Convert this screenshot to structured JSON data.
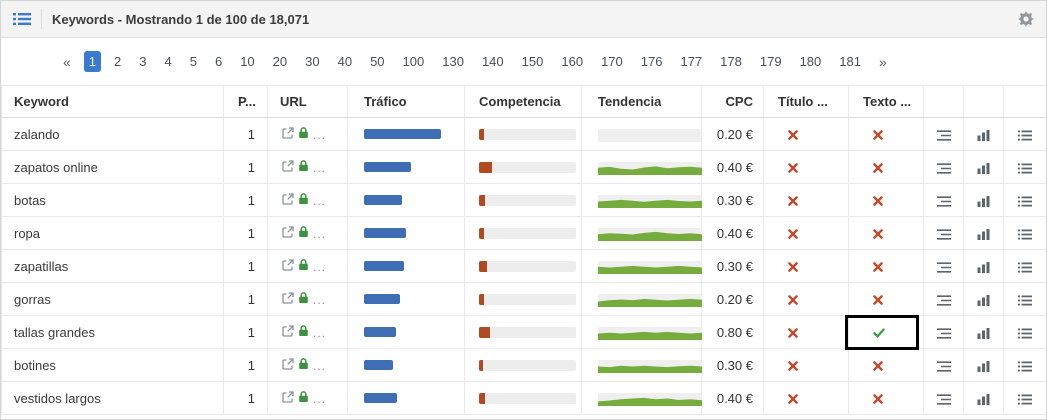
{
  "colors": {
    "accent": "#3a7bd0",
    "traffic": "#3f6eb5",
    "competition": "#b04a22",
    "trend": "#76ab3e",
    "cross": "#c04a2e",
    "check": "#3f9a3f",
    "lock": "#3d9140"
  },
  "topbar": {
    "title": "Keywords - Mostrando 1 de 100 de 18,071"
  },
  "icons": {
    "menu-icon": "list-menu ≡",
    "settings-icon": "gear ⚙",
    "external-link-icon": "↗",
    "lock-icon": "padlock",
    "cross-icon": "✖",
    "check-icon": "✔",
    "related-keywords-icon": "indented-lines",
    "chart-icon": "bar-chart",
    "serp-list-icon": "bulleted-list"
  },
  "pagination": {
    "prev": "«",
    "next": "»",
    "active": "1",
    "pages": [
      "1",
      "2",
      "3",
      "4",
      "5",
      "6",
      "10",
      "20",
      "30",
      "40",
      "50",
      "100",
      "130",
      "140",
      "150",
      "160",
      "170",
      "176",
      "177",
      "178",
      "179",
      "180",
      "181"
    ]
  },
  "table": {
    "url_ellipsis": "...",
    "columns": [
      {
        "label": "Keyword"
      },
      {
        "label": "P..."
      },
      {
        "label": "URL"
      },
      {
        "label": "Tráfico"
      },
      {
        "label": "Competencia"
      },
      {
        "label": "Tendencia"
      },
      {
        "label": "CPC"
      },
      {
        "label": "Título ..."
      },
      {
        "label": "Texto ..."
      },
      {
        "label": ""
      },
      {
        "label": ""
      },
      {
        "label": ""
      }
    ],
    "rows": [
      {
        "keyword": "zalando",
        "position": "1",
        "traffic_pct": 73,
        "competition_pct": 5,
        "trend": [],
        "cpc": "0.20 €",
        "title_match": false,
        "text_match": false,
        "highlight_text": false
      },
      {
        "keyword": "zapatos online",
        "position": "1",
        "traffic_pct": 45,
        "competition_pct": 13,
        "trend": [
          0.55,
          0.62,
          0.48,
          0.42,
          0.58,
          0.66,
          0.52,
          0.6,
          0.63,
          0.55
        ],
        "cpc": "0.40 €",
        "title_match": false,
        "text_match": false,
        "highlight_text": false
      },
      {
        "keyword": "botas",
        "position": "1",
        "traffic_pct": 36,
        "competition_pct": 6,
        "trend": [
          0.5,
          0.56,
          0.62,
          0.55,
          0.48,
          0.56,
          0.62,
          0.54,
          0.5,
          0.56
        ],
        "cpc": "0.30 €",
        "title_match": false,
        "text_match": false,
        "highlight_text": false
      },
      {
        "keyword": "ropa",
        "position": "1",
        "traffic_pct": 40,
        "competition_pct": 5,
        "trend": [
          0.52,
          0.6,
          0.55,
          0.5,
          0.62,
          0.7,
          0.6,
          0.54,
          0.6,
          0.52
        ],
        "cpc": "0.40 €",
        "title_match": false,
        "text_match": false,
        "highlight_text": false
      },
      {
        "keyword": "zapatillas",
        "position": "1",
        "traffic_pct": 38,
        "competition_pct": 8,
        "trend": [
          0.56,
          0.5,
          0.56,
          0.62,
          0.55,
          0.5,
          0.56,
          0.62,
          0.55,
          0.5
        ],
        "cpc": "0.30 €",
        "title_match": false,
        "text_match": false,
        "highlight_text": false
      },
      {
        "keyword": "gorras",
        "position": "1",
        "traffic_pct": 34,
        "competition_pct": 5,
        "trend": [
          0.42,
          0.52,
          0.58,
          0.52,
          0.62,
          0.56,
          0.5,
          0.56,
          0.62,
          0.55
        ],
        "cpc": "0.20 €",
        "title_match": false,
        "text_match": false,
        "highlight_text": false
      },
      {
        "keyword": "tallas grandes",
        "position": "1",
        "traffic_pct": 30,
        "competition_pct": 11,
        "trend": [
          0.5,
          0.56,
          0.5,
          0.56,
          0.62,
          0.56,
          0.62,
          0.55,
          0.5,
          0.56
        ],
        "cpc": "0.80 €",
        "title_match": false,
        "text_match": true,
        "highlight_text": true
      },
      {
        "keyword": "botines",
        "position": "1",
        "traffic_pct": 28,
        "competition_pct": 4,
        "trend": [
          0.5,
          0.45,
          0.55,
          0.5,
          0.56,
          0.5,
          0.45,
          0.52,
          0.56,
          0.5
        ],
        "cpc": "0.30 €",
        "title_match": false,
        "text_match": false,
        "highlight_text": false
      },
      {
        "keyword": "vestidos largos",
        "position": "1",
        "traffic_pct": 31,
        "competition_pct": 6,
        "trend": [
          0.35,
          0.42,
          0.52,
          0.58,
          0.62,
          0.52,
          0.58,
          0.46,
          0.52,
          0.44
        ],
        "cpc": "0.40 €",
        "title_match": false,
        "text_match": false,
        "highlight_text": false
      }
    ]
  }
}
